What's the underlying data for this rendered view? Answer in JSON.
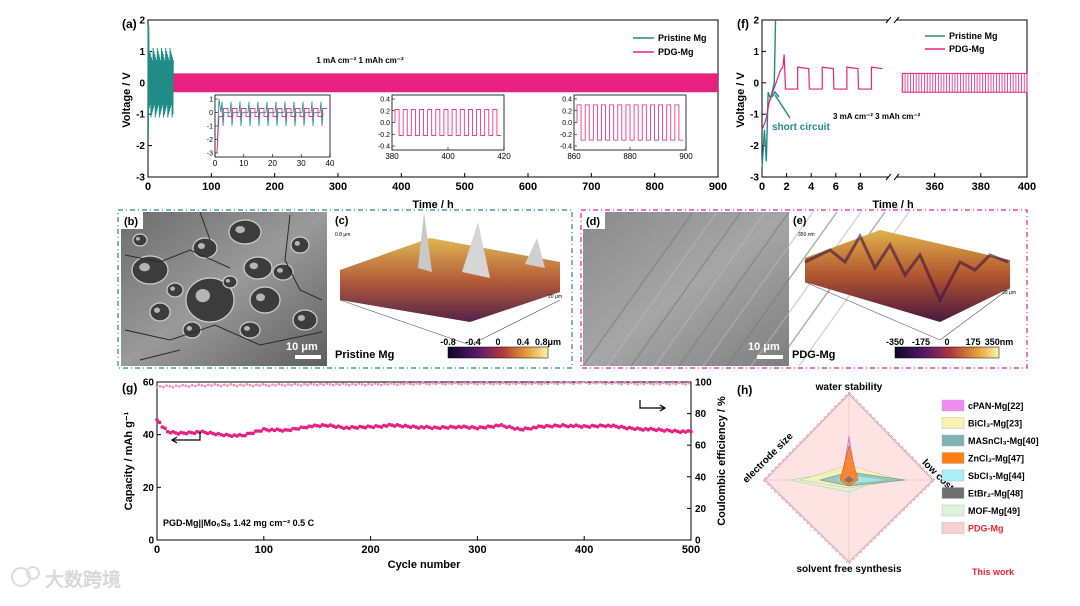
{
  "figure": {
    "panels": {
      "a": "(a)",
      "b": "(b)",
      "c": "(c)",
      "d": "(d)",
      "e": "(e)",
      "f": "(f)",
      "g": "(g)",
      "h": "(h)"
    },
    "watermark": "大数跨境"
  },
  "chart_data": [
    {
      "id": "a",
      "type": "line",
      "xlabel": "Time / h",
      "ylabel": "Voltage / V",
      "xlim": [
        0,
        900
      ],
      "ylim": [
        -3,
        2
      ],
      "xticks": [
        "0",
        "100",
        "200",
        "300",
        "400",
        "500",
        "600",
        "700",
        "800",
        "900"
      ],
      "yticks": [
        "2",
        "1",
        "0",
        "-1",
        "-2",
        "-3"
      ],
      "annotation": "1 mA cm⁻² 1 mAh cm⁻²",
      "series": [
        {
          "name": "Pristine Mg",
          "color": "#1f8c87",
          "x_range": [
            0,
            40
          ],
          "voltage_range": [
            -1.2,
            1.2
          ]
        },
        {
          "name": "PDG-Mg",
          "color": "#e8207e",
          "x_range": [
            0,
            900
          ],
          "voltage_range": [
            -0.3,
            0.3
          ]
        }
      ],
      "insets": [
        {
          "xlim": [
            0,
            40
          ],
          "xticks": [
            "0",
            "10",
            "20",
            "30",
            "40"
          ],
          "yticks": [
            "1",
            "0",
            "-1",
            "-2",
            "-3"
          ]
        },
        {
          "xlim": [
            380,
            420
          ],
          "xticks": [
            "380",
            "400",
            "420"
          ],
          "yticks": [
            "0.4",
            "0.2",
            "0.0",
            "-0.2",
            "-0.4"
          ]
        },
        {
          "xlim": [
            860,
            900
          ],
          "xticks": [
            "860",
            "880",
            "900"
          ],
          "yticks": [
            "0.4",
            "0.2",
            "0.0",
            "-0.2",
            "-0.4"
          ]
        }
      ]
    },
    {
      "id": "f",
      "type": "line",
      "xlabel": "Time / h",
      "ylabel": "Voltage / V",
      "xticks_left": [
        "0",
        "2",
        "4",
        "6",
        "8"
      ],
      "xticks_right": [
        "360",
        "380",
        "400"
      ],
      "yticks": [
        "2",
        "1",
        "0",
        "-1",
        "-2",
        "-3"
      ],
      "annotation": "3 mA cm⁻² 3 mAh cm⁻²",
      "arrow_label": "short circuit",
      "series": [
        {
          "name": "Pristine Mg",
          "color": "#1f8c87"
        },
        {
          "name": "PDG-Mg",
          "color": "#e8207e"
        }
      ]
    },
    {
      "id": "g",
      "type": "scatter",
      "xlabel": "Cycle number",
      "ylabel": "Capacity / mAh g⁻¹",
      "y2label": "Coulombic efficiency / %",
      "xlim": [
        0,
        500
      ],
      "ylim": [
        0,
        60
      ],
      "y2lim": [
        0,
        100
      ],
      "xticks": [
        "0",
        "100",
        "200",
        "300",
        "400",
        "500"
      ],
      "yticks": [
        "0",
        "20",
        "40",
        "60"
      ],
      "y2ticks": [
        "0",
        "20",
        "40",
        "60",
        "80",
        "100"
      ],
      "capacity_points": [
        [
          0,
          46
        ],
        [
          5,
          43
        ],
        [
          10,
          41
        ],
        [
          20,
          40.5
        ],
        [
          40,
          41
        ],
        [
          60,
          40
        ],
        [
          80,
          39.5
        ],
        [
          100,
          42
        ],
        [
          120,
          41.5
        ],
        [
          140,
          43
        ],
        [
          160,
          43.5
        ],
        [
          180,
          42.5
        ],
        [
          200,
          43
        ],
        [
          220,
          43.5
        ],
        [
          240,
          43
        ],
        [
          260,
          42.5
        ],
        [
          280,
          43
        ],
        [
          300,
          42.5
        ],
        [
          320,
          43.5
        ],
        [
          340,
          42
        ],
        [
          360,
          43
        ],
        [
          380,
          43.5
        ],
        [
          400,
          43
        ],
        [
          420,
          43.5
        ],
        [
          440,
          42.5
        ],
        [
          460,
          42
        ],
        [
          480,
          41.5
        ],
        [
          500,
          41
        ]
      ],
      "ce_points": [
        [
          0,
          97
        ],
        [
          50,
          98
        ],
        [
          100,
          98
        ],
        [
          150,
          98.5
        ],
        [
          200,
          98.5
        ],
        [
          250,
          99
        ],
        [
          300,
          99
        ],
        [
          350,
          99
        ],
        [
          400,
          99.5
        ],
        [
          450,
          99
        ],
        [
          500,
          99
        ]
      ],
      "note": "PGD-Mg||Mo₆S₈ 1.42 mg cm⁻²  0.5 C"
    },
    {
      "id": "h",
      "type": "radar",
      "axes": [
        "water stability",
        "low cost",
        "solvent free synthesis",
        "electrode size"
      ],
      "legend": [
        {
          "label": "cPAN-Mg[22]",
          "color": "#f28bf0"
        },
        {
          "label": "BiCl₃-Mg[23]",
          "color": "#f7f3b2"
        },
        {
          "label": "MASnCl₃-Mg[40]",
          "color": "#7fb3b3"
        },
        {
          "label": "ZnCl₂-Mg[47]",
          "color": "#ff7f0e"
        },
        {
          "label": "SbCl₃-Mg[44]",
          "color": "#a8f0f5"
        },
        {
          "label": "EtBr₂-Mg[48]",
          "color": "#707070"
        },
        {
          "label": "MOF-Mg[49]",
          "color": "#d9f5d9"
        },
        {
          "label": "PDG-Mg",
          "color": "#fbd0cf"
        }
      ],
      "this_work": "This work"
    }
  ],
  "images": {
    "b": {
      "scale": "10 μm"
    },
    "c": {
      "title": "Pristine Mg",
      "colorbar": [
        "-0.8",
        "-0.4",
        "0",
        "0.4",
        "0.8μm"
      ],
      "z_label": "0.8 μm",
      "axis_label": "20 μm"
    },
    "d": {
      "scale": "10 μm"
    },
    "e": {
      "title": "PDG-Mg",
      "colorbar": [
        "-350",
        "-175",
        "0",
        "175",
        "350nm"
      ],
      "z_label": "350 nm",
      "axis_label": "20 μm"
    }
  }
}
